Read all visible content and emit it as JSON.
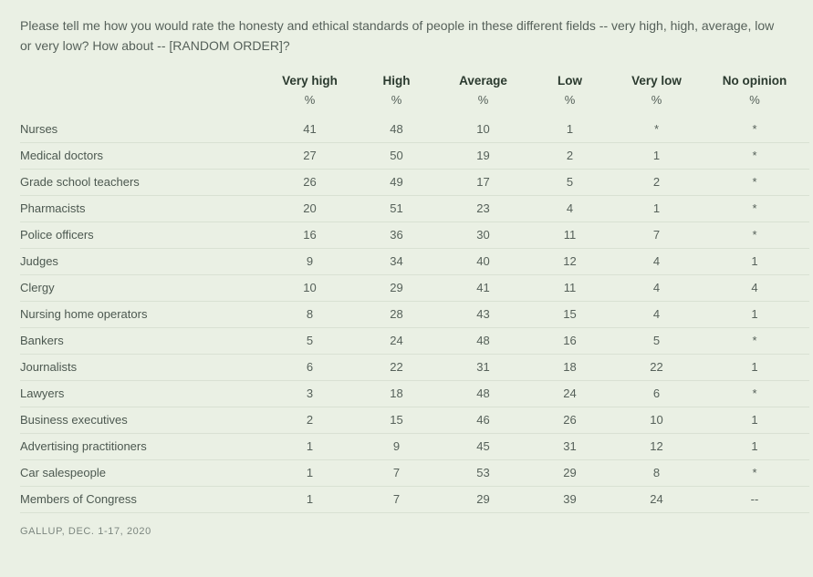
{
  "background_color": "#eaf0e4",
  "text_color": "#56615a",
  "header_color": "#2b3a2f",
  "row_border_color": "#d9e1d3",
  "question": "Please tell me how you would rate the honesty and ethical standards of people in these different fields -- very high, high, average, low or very low? How about -- [RANDOM ORDER]?",
  "unit": "%",
  "columns": [
    "Very high",
    "High",
    "Average",
    "Low",
    "Very low",
    "No opinion"
  ],
  "rows": [
    {
      "label": "Nurses",
      "cells": [
        "41",
        "48",
        "10",
        "1",
        "*",
        "*"
      ]
    },
    {
      "label": "Medical doctors",
      "cells": [
        "27",
        "50",
        "19",
        "2",
        "1",
        "*"
      ]
    },
    {
      "label": "Grade school teachers",
      "cells": [
        "26",
        "49",
        "17",
        "5",
        "2",
        "*"
      ]
    },
    {
      "label": "Pharmacists",
      "cells": [
        "20",
        "51",
        "23",
        "4",
        "1",
        "*"
      ]
    },
    {
      "label": "Police officers",
      "cells": [
        "16",
        "36",
        "30",
        "11",
        "7",
        "*"
      ]
    },
    {
      "label": "Judges",
      "cells": [
        "9",
        "34",
        "40",
        "12",
        "4",
        "1"
      ]
    },
    {
      "label": "Clergy",
      "cells": [
        "10",
        "29",
        "41",
        "11",
        "4",
        "4"
      ]
    },
    {
      "label": "Nursing home operators",
      "cells": [
        "8",
        "28",
        "43",
        "15",
        "4",
        "1"
      ]
    },
    {
      "label": "Bankers",
      "cells": [
        "5",
        "24",
        "48",
        "16",
        "5",
        "*"
      ]
    },
    {
      "label": "Journalists",
      "cells": [
        "6",
        "22",
        "31",
        "18",
        "22",
        "1"
      ]
    },
    {
      "label": "Lawyers",
      "cells": [
        "3",
        "18",
        "48",
        "24",
        "6",
        "*"
      ]
    },
    {
      "label": "Business executives",
      "cells": [
        "2",
        "15",
        "46",
        "26",
        "10",
        "1"
      ]
    },
    {
      "label": "Advertising practitioners",
      "cells": [
        "1",
        "9",
        "45",
        "31",
        "12",
        "1"
      ]
    },
    {
      "label": "Car salespeople",
      "cells": [
        "1",
        "7",
        "53",
        "29",
        "8",
        "*"
      ]
    },
    {
      "label": "Members of Congress",
      "cells": [
        "1",
        "7",
        "29",
        "39",
        "24",
        "--"
      ]
    }
  ],
  "footer": "GALLUP, DEC. 1-17, 2020"
}
